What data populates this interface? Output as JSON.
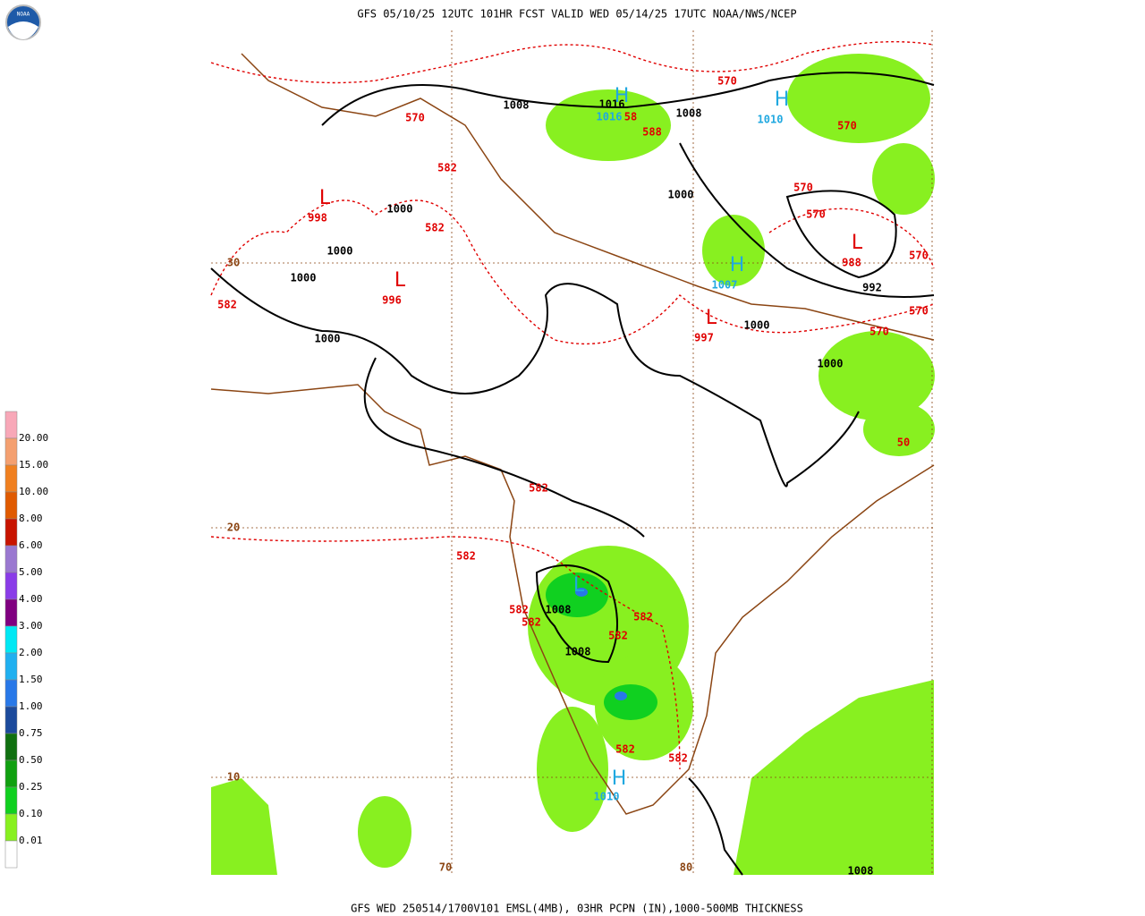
{
  "header": "GFS 05/10/25 12UTC 101HR FCST VALID WED 05/14/25 17UTC NOAA/NWS/NCEP",
  "logo": "NOAA",
  "footer": "GFS WED 250514/1700V101 EMSL(4MB), 03HR PCPN (IN),1000-500MB THICKNESS",
  "legend": {
    "labels": [
      "20.00",
      "15.00",
      "10.00",
      "8.00",
      "6.00",
      "5.00",
      "4.00",
      "3.00",
      "2.00",
      "1.50",
      "1.00",
      "0.75",
      "0.50",
      "0.25",
      "0.10",
      "0.01"
    ],
    "colors": [
      "#f8a8b8",
      "#f4a070",
      "#f08020",
      "#e05a00",
      "#c81400",
      "#9a78d0",
      "#8a3ce8",
      "#800080",
      "#00e8f4",
      "#20b0f0",
      "#2878e8",
      "#1c4a9c",
      "#107010",
      "#10a010",
      "#10d020",
      "#88f020",
      "#ffffff"
    ]
  },
  "map_labels": [
    {
      "text": "H",
      "color": "#20a8e0"
    },
    {
      "text": "1016",
      "color": "#000000"
    },
    {
      "text": "1016",
      "color": "#20a8e0"
    },
    {
      "text": "58",
      "color": "#e00000"
    },
    {
      "text": "1008",
      "color": "#000000"
    },
    {
      "text": "1008",
      "color": "#000000"
    },
    {
      "text": "H",
      "color": "#20a8e0"
    },
    {
      "text": "1010",
      "color": "#20a8e0"
    },
    {
      "text": "570",
      "color": "#e00000"
    },
    {
      "text": "570",
      "color": "#e00000"
    },
    {
      "text": "570",
      "color": "#e00000"
    },
    {
      "text": "588",
      "color": "#e00000"
    },
    {
      "text": "582",
      "color": "#e00000"
    },
    {
      "text": "L",
      "color": "#e00000"
    },
    {
      "text": "998",
      "color": "#e00000"
    },
    {
      "text": "1000",
      "color": "#000000"
    },
    {
      "text": "582",
      "color": "#e00000"
    },
    {
      "text": "1000",
      "color": "#000000"
    },
    {
      "text": "1000",
      "color": "#000000"
    },
    {
      "text": "L",
      "color": "#e00000"
    },
    {
      "text": "996",
      "color": "#e00000"
    },
    {
      "text": "582",
      "color": "#e00000"
    },
    {
      "text": "1000",
      "color": "#000000"
    },
    {
      "text": "1000",
      "color": "#000000"
    },
    {
      "text": "570",
      "color": "#e00000"
    },
    {
      "text": "570",
      "color": "#e00000"
    },
    {
      "text": "L",
      "color": "#e00000"
    },
    {
      "text": "988",
      "color": "#e00000"
    },
    {
      "text": "570",
      "color": "#e00000"
    },
    {
      "text": "992",
      "color": "#000000"
    },
    {
      "text": "H",
      "color": "#20a8e0"
    },
    {
      "text": "1007",
      "color": "#20a8e0"
    },
    {
      "text": "L",
      "color": "#e00000"
    },
    {
      "text": "997",
      "color": "#e00000"
    },
    {
      "text": "1000",
      "color": "#000000"
    },
    {
      "text": "570",
      "color": "#e00000"
    },
    {
      "text": "570",
      "color": "#e00000"
    },
    {
      "text": "1000",
      "color": "#000000"
    },
    {
      "text": "50",
      "color": "#e00000"
    },
    {
      "text": "30",
      "color": "#8b4513"
    },
    {
      "text": "20",
      "color": "#8b4513"
    },
    {
      "text": "10",
      "color": "#8b4513"
    },
    {
      "text": "70",
      "color": "#8b4513"
    },
    {
      "text": "80",
      "color": "#8b4513"
    },
    {
      "text": "582",
      "color": "#e00000"
    },
    {
      "text": "582",
      "color": "#e00000"
    },
    {
      "text": "582",
      "color": "#e00000"
    },
    {
      "text": "582",
      "color": "#e00000"
    },
    {
      "text": "1008",
      "color": "#000000"
    },
    {
      "text": "582",
      "color": "#e00000"
    },
    {
      "text": "582",
      "color": "#e00000"
    },
    {
      "text": "1008",
      "color": "#000000"
    },
    {
      "text": "582",
      "color": "#e00000"
    },
    {
      "text": "582",
      "color": "#e00000"
    },
    {
      "text": "H",
      "color": "#20a8e0"
    },
    {
      "text": "1010",
      "color": "#20a8e0"
    },
    {
      "text": "1008",
      "color": "#000000"
    },
    {
      "text": "L",
      "color": "#20a8e0"
    }
  ]
}
